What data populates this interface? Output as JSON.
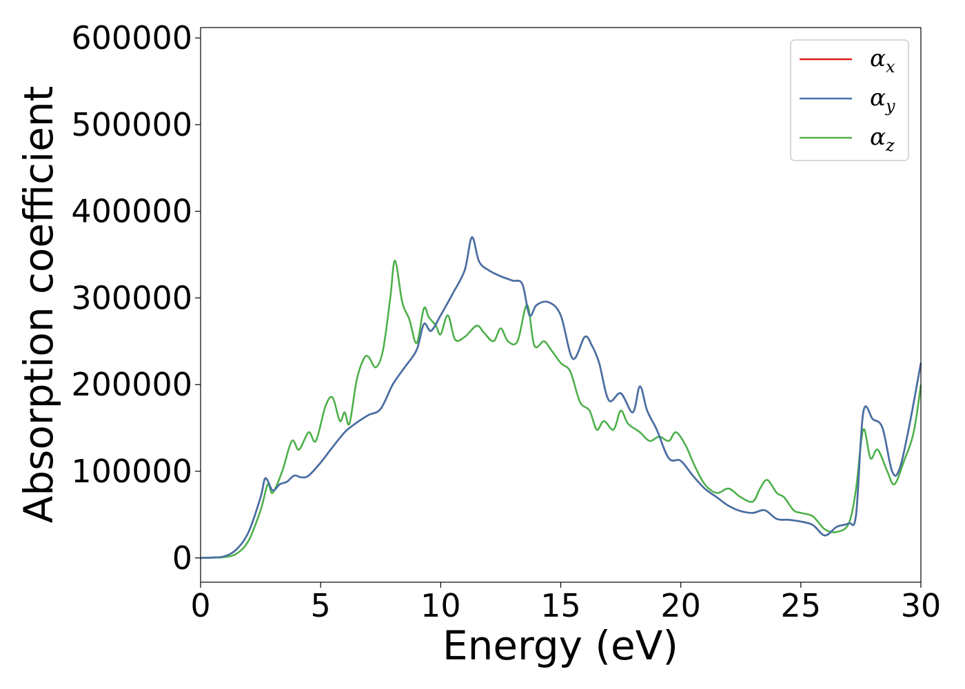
{
  "chart_data": {
    "type": "line",
    "xlabel": "Energy (eV)",
    "ylabel": "Absorption coefficient",
    "xlim": [
      0,
      30
    ],
    "ylim": [
      -28000,
      612000
    ],
    "x_ticks": [
      0,
      5,
      10,
      15,
      20,
      25,
      30
    ],
    "x_tick_labels": [
      "0",
      "5",
      "10",
      "15",
      "20",
      "25",
      "30"
    ],
    "y_ticks": [
      0,
      100000,
      200000,
      300000,
      400000,
      500000,
      600000
    ],
    "y_tick_labels": [
      "0",
      "100000",
      "200000",
      "300000",
      "400000",
      "500000",
      "600000"
    ],
    "grid": false,
    "legend_position": "top-right",
    "series": [
      {
        "name": "α_x",
        "label_main": "α",
        "label_sub": "x",
        "color": "#e41a1c",
        "x": [
          0,
          0.5,
          1.0,
          1.5,
          2.0,
          2.5,
          2.7,
          3.0,
          3.3,
          3.6,
          3.9,
          4.2,
          4.5,
          5.0,
          5.5,
          6.0,
          6.3,
          6.6,
          7.0,
          7.5,
          8.0,
          8.5,
          9.0,
          9.3,
          9.6,
          10.0,
          10.5,
          11.0,
          11.3,
          11.6,
          12.0,
          12.5,
          13.0,
          13.4,
          13.7,
          14.0,
          14.5,
          15.0,
          15.5,
          16.0,
          16.3,
          16.6,
          17.0,
          17.5,
          18.0,
          18.3,
          18.6,
          19.0,
          19.5,
          20.0,
          20.5,
          21.0,
          21.5,
          22.0,
          22.5,
          23.0,
          23.5,
          24.0,
          24.5,
          25.0,
          25.5,
          26.0,
          26.5,
          27.0,
          27.3,
          27.6,
          28.0,
          28.4,
          28.8,
          29.1,
          29.5,
          30.0
        ],
        "values": [
          0,
          500,
          2000,
          10000,
          30000,
          70000,
          92000,
          78000,
          85000,
          88000,
          95000,
          93000,
          95000,
          110000,
          128000,
          145000,
          152000,
          158000,
          165000,
          172000,
          200000,
          220000,
          240000,
          270000,
          262000,
          280000,
          305000,
          332000,
          370000,
          342000,
          332000,
          325000,
          320000,
          316000,
          280000,
          292000,
          295000,
          280000,
          230000,
          255000,
          245000,
          225000,
          182000,
          190000,
          168000,
          198000,
          170000,
          148000,
          115000,
          112000,
          95000,
          80000,
          70000,
          60000,
          54000,
          52000,
          55000,
          45000,
          44000,
          42000,
          38000,
          26000,
          36000,
          40000,
          50000,
          168000,
          160000,
          150000,
          100000,
          102000,
          150000,
          225000
        ]
      },
      {
        "name": "α_y",
        "label_main": "α",
        "label_sub": "y",
        "color": "#4372a8",
        "x": [
          0,
          0.5,
          1.0,
          1.5,
          2.0,
          2.5,
          2.7,
          3.0,
          3.3,
          3.6,
          3.9,
          4.2,
          4.5,
          5.0,
          5.5,
          6.0,
          6.3,
          6.6,
          7.0,
          7.5,
          8.0,
          8.5,
          9.0,
          9.3,
          9.6,
          10.0,
          10.5,
          11.0,
          11.3,
          11.6,
          12.0,
          12.5,
          13.0,
          13.4,
          13.7,
          14.0,
          14.5,
          15.0,
          15.5,
          16.0,
          16.3,
          16.6,
          17.0,
          17.5,
          18.0,
          18.3,
          18.6,
          19.0,
          19.5,
          20.0,
          20.5,
          21.0,
          21.5,
          22.0,
          22.5,
          23.0,
          23.5,
          24.0,
          24.5,
          25.0,
          25.5,
          26.0,
          26.5,
          27.0,
          27.3,
          27.6,
          28.0,
          28.4,
          28.8,
          29.1,
          29.5,
          30.0
        ],
        "values": [
          0,
          500,
          2000,
          10000,
          30000,
          70000,
          92000,
          78000,
          85000,
          88000,
          95000,
          93000,
          95000,
          110000,
          128000,
          145000,
          152000,
          158000,
          165000,
          172000,
          200000,
          220000,
          240000,
          270000,
          262000,
          280000,
          305000,
          332000,
          370000,
          342000,
          332000,
          325000,
          320000,
          316000,
          280000,
          292000,
          295000,
          280000,
          230000,
          255000,
          245000,
          225000,
          182000,
          190000,
          168000,
          198000,
          170000,
          148000,
          115000,
          112000,
          95000,
          80000,
          70000,
          60000,
          54000,
          52000,
          55000,
          45000,
          44000,
          42000,
          38000,
          26000,
          36000,
          40000,
          50000,
          168000,
          160000,
          150000,
          100000,
          102000,
          150000,
          225000
        ]
      },
      {
        "name": "α_z",
        "label_main": "α",
        "label_sub": "z",
        "color": "#4daf4a",
        "x": [
          0,
          0.5,
          1.0,
          1.5,
          2.0,
          2.5,
          2.8,
          3.0,
          3.4,
          3.8,
          4.1,
          4.5,
          4.8,
          5.2,
          5.5,
          5.8,
          6.0,
          6.2,
          6.5,
          6.8,
          7.0,
          7.3,
          7.6,
          7.9,
          8.1,
          8.4,
          8.7,
          9.0,
          9.3,
          9.5,
          9.8,
          10.0,
          10.3,
          10.6,
          11.0,
          11.5,
          11.8,
          12.2,
          12.5,
          12.8,
          13.2,
          13.6,
          13.9,
          14.3,
          14.6,
          15.0,
          15.4,
          15.8,
          16.2,
          16.5,
          16.8,
          17.2,
          17.5,
          17.8,
          18.3,
          18.7,
          19.1,
          19.5,
          19.8,
          20.2,
          20.6,
          21.0,
          21.5,
          22.0,
          22.5,
          23.0,
          23.3,
          23.6,
          24.0,
          24.3,
          24.7,
          25.0,
          25.5,
          26.0,
          26.5,
          27.0,
          27.3,
          27.6,
          27.9,
          28.2,
          28.6,
          28.9,
          29.3,
          29.7,
          30.0
        ],
        "values": [
          0,
          300,
          1000,
          5000,
          20000,
          55000,
          85000,
          75000,
          100000,
          135000,
          125000,
          145000,
          135000,
          175000,
          185000,
          158000,
          168000,
          155000,
          205000,
          230000,
          232000,
          220000,
          240000,
          300000,
          343000,
          295000,
          275000,
          248000,
          288000,
          278000,
          268000,
          258000,
          280000,
          252000,
          255000,
          268000,
          260000,
          250000,
          265000,
          250000,
          250000,
          292000,
          245000,
          250000,
          240000,
          225000,
          215000,
          180000,
          170000,
          148000,
          158000,
          148000,
          170000,
          155000,
          145000,
          135000,
          140000,
          135000,
          145000,
          130000,
          105000,
          85000,
          75000,
          80000,
          70000,
          65000,
          80000,
          90000,
          75000,
          70000,
          55000,
          52000,
          48000,
          33000,
          30000,
          40000,
          80000,
          148000,
          115000,
          125000,
          100000,
          85000,
          112000,
          145000,
          200000
        ]
      }
    ]
  }
}
